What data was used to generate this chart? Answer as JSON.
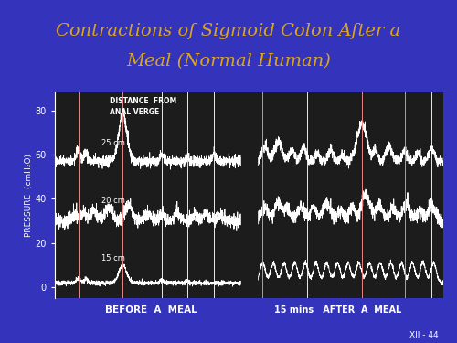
{
  "title_line1": "Contractions of Sigmoid Colon After a",
  "title_line2": "Meal (Normal Human)",
  "title_color": "#DAA520",
  "title_fontsize": 14,
  "bg_color": "#3333BB",
  "plot_bg_color": "#1c1c1c",
  "text_color": "white",
  "ylabel": "PRESSURE  (cmH₂O)",
  "yticks": [
    0,
    20,
    40,
    60,
    80
  ],
  "labels_25cm": "25 cm",
  "labels_20cm": "20 cm",
  "labels_15cm": "15 cm",
  "before_label": "BEFORE  A  MEAL",
  "after_label": "15 mins   AFTER  A  MEAL",
  "ref_label": "XII - 44",
  "line_color": "white",
  "vline_color": "#DD2222",
  "base25": 57,
  "base20": 30,
  "base15": 2
}
